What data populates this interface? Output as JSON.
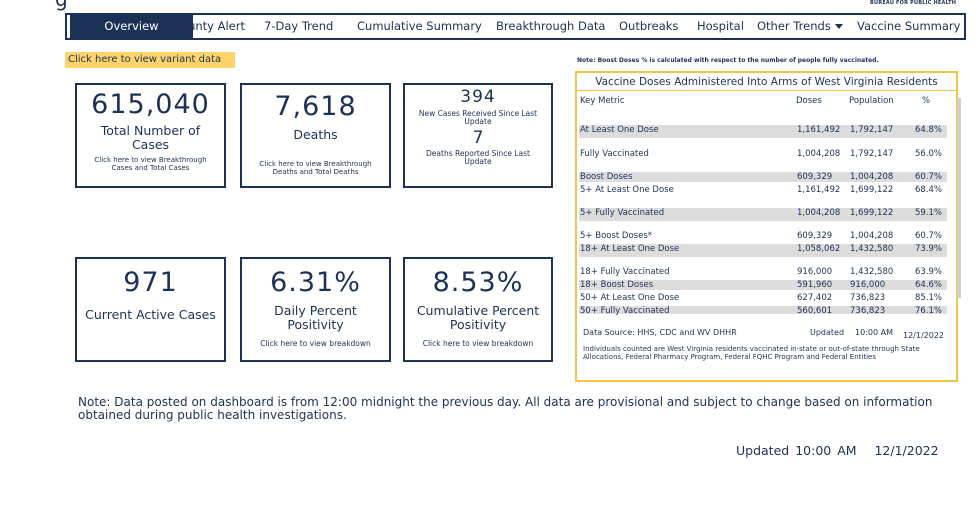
{
  "header": {
    "title_fragment": "g",
    "bureau": "BUREAU FOR PUBLIC HEALTH"
  },
  "nav": {
    "tabs": [
      {
        "label": "Overview"
      },
      {
        "label": "County Alert"
      },
      {
        "label": "7-Day Trend"
      },
      {
        "label": "Cumulative Summary"
      },
      {
        "label": "Breakthrough Data"
      },
      {
        "label": "Outbreaks"
      },
      {
        "label": "Hospital"
      },
      {
        "label": "Other Trends"
      },
      {
        "label": "Vaccine Summary"
      }
    ]
  },
  "variant_link": "Click here to view variant data",
  "cards": {
    "total_cases": {
      "value": "615,040",
      "label": "Total Number of Cases",
      "link": "Click here to view Breakthrough Cases and Total Cases"
    },
    "deaths": {
      "value": "7,618",
      "label": "Deaths",
      "link": "Click here to view Breakthrough Deaths and Total Deaths"
    },
    "new_cases": {
      "value": "394",
      "label": "New Cases Received Since Last Update",
      "value2": "7",
      "label2": "Deaths Reported Since Last Update"
    },
    "active": {
      "value": "971",
      "label": "Current Active Cases"
    },
    "daily_pos": {
      "value": "6.31%",
      "label": "Daily Percent Positivity",
      "link": "Click here to view breakdown"
    },
    "cum_pos": {
      "value": "8.53%",
      "label": "Cumulative Percent Positivity",
      "link": "Click here to view breakdown"
    }
  },
  "vaccine": {
    "note": "Note: Boost Doses % is calculated with respect to the number of people fully vaccinated.",
    "title": "Vaccine Doses Administered Into Arms of West Virginia Residents",
    "headers": {
      "metric": "Key Metric",
      "doses": "Doses",
      "population": "Population",
      "pct": "%"
    },
    "rows": [
      {
        "metric": "At Least One Dose",
        "doses": "1,161,492",
        "population": "1,792,147",
        "pct": "64.8%"
      },
      {
        "metric": "Fully Vaccinated",
        "doses": "1,004,208",
        "population": "1,792,147",
        "pct": "56.0%"
      },
      {
        "metric": "Boost Doses",
        "doses": "609,329",
        "population": "1,004,208",
        "pct": "60.7%"
      },
      {
        "metric": "5+ At Least One Dose",
        "doses": "1,161,492",
        "population": "1,699,122",
        "pct": "68.4%"
      },
      {
        "metric": "5+ Fully Vaccinated",
        "doses": "1,004,208",
        "population": "1,699,122",
        "pct": "59.1%"
      },
      {
        "metric": "5+ Boost Doses*",
        "doses": "609,329",
        "population": "1,004,208",
        "pct": "60.7%"
      },
      {
        "metric": "18+ At Least One Dose",
        "doses": "1,058,062",
        "population": "1,432,580",
        "pct": "73.9%"
      },
      {
        "metric": "18+ Fully Vaccinated",
        "doses": "916,000",
        "population": "1,432,580",
        "pct": "63.9%"
      },
      {
        "metric": "18+ Boost Doses",
        "doses": "591,960",
        "population": "916,000",
        "pct": "64.6%"
      },
      {
        "metric": "50+ At Least One Dose",
        "doses": "627,402",
        "population": "736,823",
        "pct": "85.1%"
      },
      {
        "metric": "50+ Fully Vaccinated",
        "doses": "560,601",
        "population": "736,823",
        "pct": "76.1%"
      }
    ],
    "source": "Data Source: HHS, CDC and WV DHHR",
    "updated_label": "Updated",
    "updated_time": "10:00 AM",
    "updated_date": "12/1/2022",
    "footnote": "Individuals counted are West Virginia residents vaccinated in-state or out-of-state through State Allocations, Federal Pharmacy Program, Federal FQHC Program and Federal Entities"
  },
  "footer": {
    "note": "Note: Data posted on dashboard is from 12:00 midnight the previous day. All data are provisional and subject to change based on information obtained during public health investigations.",
    "updated_label": "Updated",
    "updated_time": "10:00 AM",
    "updated_date": "12/1/2022"
  }
}
